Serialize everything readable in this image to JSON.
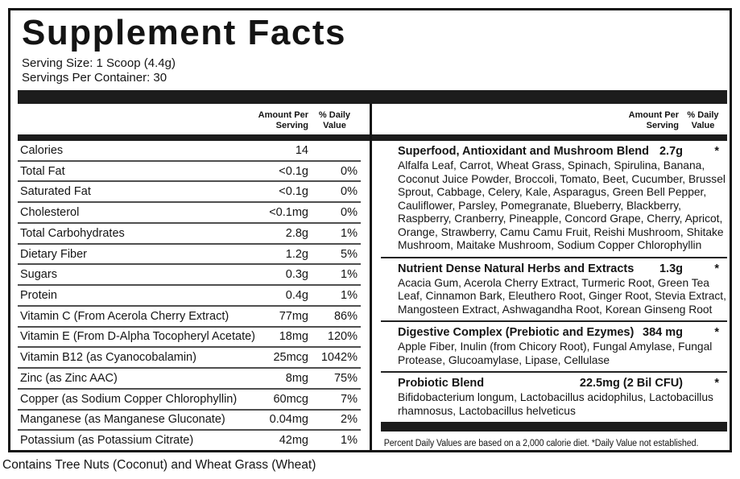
{
  "label": {
    "title": "Supplement Facts",
    "serving_size": "Serving Size: 1 Scoop (4.4g)",
    "servings_per_container": "Servings Per Container: 30",
    "header": {
      "amount_line1": "Amount Per",
      "amount_line2": "Serving",
      "dv_line1": "% Daily",
      "dv_line2": "Value"
    },
    "footnote": "Percent Daily Values are based on a 2,000 calorie diet. *Daily Value not established.",
    "allergen": "Contains Tree Nuts (Coconut) and Wheat Grass (Wheat)",
    "colors": {
      "ink": "#141414",
      "bar": "#1c1c1c",
      "background": "#ffffff"
    }
  },
  "nutrients": [
    {
      "name": "Calories",
      "amount": "14",
      "dv": ""
    },
    {
      "name": "Total Fat",
      "amount": "<0.1g",
      "dv": "0%"
    },
    {
      "name": "Saturated Fat",
      "amount": "<0.1g",
      "dv": "0%"
    },
    {
      "name": "Cholesterol",
      "amount": "<0.1mg",
      "dv": "0%"
    },
    {
      "name": "Total Carbohydrates",
      "amount": "2.8g",
      "dv": "1%"
    },
    {
      "name": "Dietary Fiber",
      "amount": "1.2g",
      "dv": "5%"
    },
    {
      "name": "Sugars",
      "amount": "0.3g",
      "dv": "1%"
    },
    {
      "name": "Protein",
      "amount": "0.4g",
      "dv": "1%"
    },
    {
      "name": "Vitamin C (From Acerola Cherry Extract)",
      "amount": "77mg",
      "dv": "86%"
    },
    {
      "name": "Vitamin E (From D-Alpha Tocopheryl Acetate)",
      "amount": "18mg",
      "dv": "120%"
    },
    {
      "name": "Vitamin B12 (as Cyanocobalamin)",
      "amount": "25mcg",
      "dv": "1042%"
    },
    {
      "name": "Zinc (as Zinc AAC)",
      "amount": "8mg",
      "dv": "75%"
    },
    {
      "name": "Copper (as Sodium Copper Chlorophyllin)",
      "amount": "60mcg",
      "dv": "7%"
    },
    {
      "name": "Manganese (as Manganese Gluconate)",
      "amount": "0.04mg",
      "dv": "2%"
    },
    {
      "name": "Potassium (as Potassium Citrate)",
      "amount": "42mg",
      "dv": "1%"
    }
  ],
  "blends": [
    {
      "name": "Superfood, Antioxidant and Mushroom Blend",
      "amount": "2.7g",
      "dv": "*",
      "ingredients": "Alfalfa Leaf, Carrot, Wheat Grass, Spinach, Spirulina, Banana, Coconut Juice Powder, Broccoli, Tomato, Beet, Cucumber, Brussel Sprout, Cabbage, Celery, Kale, Asparagus, Green Bell Pepper, Cauliflower, Parsley, Pomegranate, Blueberry, Blackberry, Raspberry, Cranberry, Pineapple, Concord Grape, Cherry, Apricot, Orange, Strawberry, Camu Camu Fruit, Reishi Mushroom, Shitake Mushroom, Maitake Mushroom, Sodium Copper Chlorophyllin"
    },
    {
      "name": "Nutrient Dense Natural Herbs and Extracts",
      "amount": "1.3g",
      "dv": "*",
      "ingredients": "Acacia Gum, Acerola Cherry Extract, Turmeric Root, Green Tea Leaf, Cinnamon Bark, Eleuthero Root, Ginger Root, Stevia Extract, Mangosteen Extract, Ashwagandha Root, Korean Ginseng Root"
    },
    {
      "name": "Digestive Complex (Prebiotic and Ezymes)",
      "amount": "384 mg",
      "dv": "*",
      "ingredients": "Apple Fiber, Inulin (from Chicory Root), Fungal Amylase, Fungal Protease, Glucoamylase, Lipase, Cellulase"
    },
    {
      "name": "Probiotic Blend",
      "amount": "22.5mg (2 Bil CFU)",
      "dv": "*",
      "ingredients": "Bifidobacterium longum, Lactobacillus acidophilus, Lactobacillus rhamnosus, Lactobacillus helveticus"
    }
  ]
}
